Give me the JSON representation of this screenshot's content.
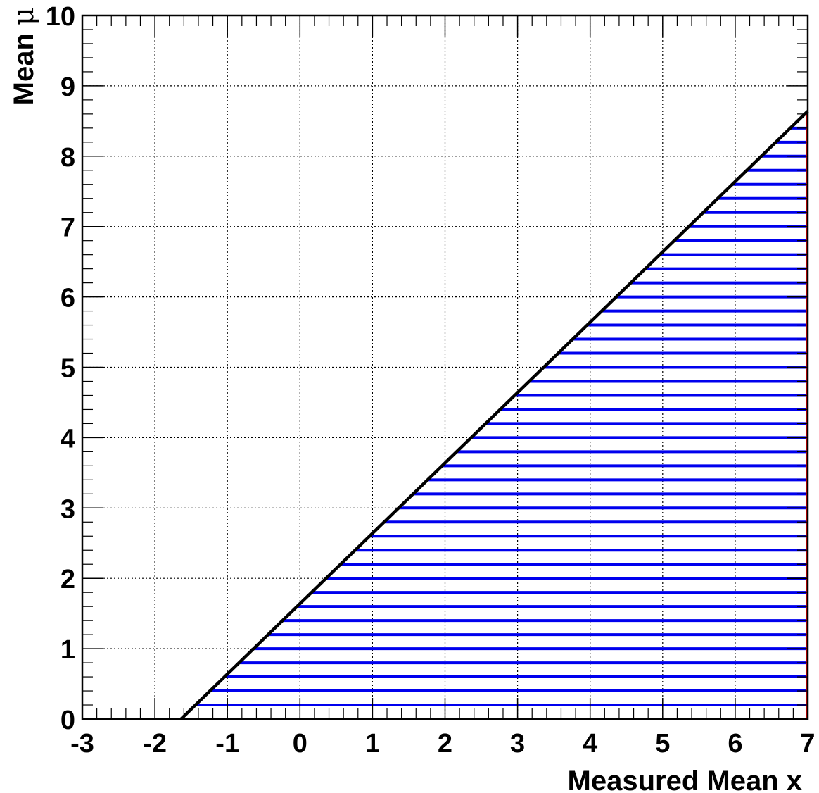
{
  "chart_data": {
    "type": "line",
    "xlabel": "Measured Mean x",
    "ylabel_prefix": "Mean ",
    "ylabel_symbol": "μ",
    "xlim": [
      -3,
      7
    ],
    "ylim": [
      0,
      10
    ],
    "x_ticks": [
      "-3",
      "-2",
      "-1",
      "0",
      "1",
      "2",
      "3",
      "4",
      "5",
      "6",
      "7"
    ],
    "y_ticks": [
      "0",
      "1",
      "2",
      "3",
      "4",
      "5",
      "6",
      "7",
      "8",
      "9",
      "10"
    ],
    "grid": true,
    "boundary_line": {
      "x": [
        -1.64,
        7.0
      ],
      "y": [
        0,
        8.64
      ]
    },
    "hatch": {
      "y_start": 0,
      "y_end": 8.6,
      "y_step": 0.2,
      "x_end": 7.0
    },
    "colors": {
      "boundary": "#000000",
      "hatch": "#0000ee",
      "grid": "#000000",
      "edge": "#dd0000"
    }
  }
}
